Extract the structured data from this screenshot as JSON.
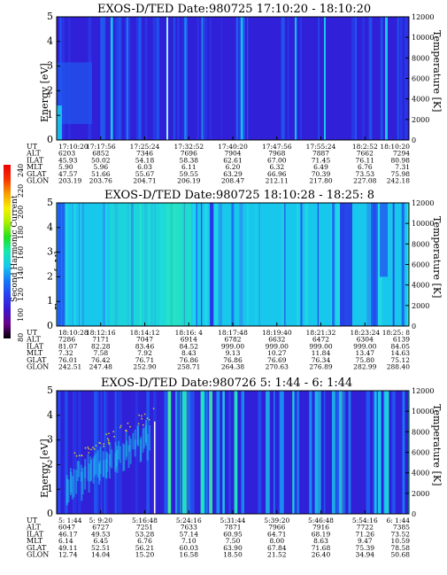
{
  "chart_data": [
    {
      "type": "heatmap",
      "title": "EXOS-D/TED   Date:980725  17:10:20 - 18:10:20",
      "ylabel": "Energy [eV]",
      "y2label": "Temperature [K]",
      "ylim": [
        0,
        5
      ],
      "y2lim": [
        0,
        12000
      ],
      "yticks": [
        "0",
        "1",
        "2",
        "3",
        "4",
        "5"
      ],
      "y2ticks": [
        "0",
        "2000",
        "4000",
        "6000",
        "8000",
        "10000",
        "12000"
      ],
      "background_color": "#3020d8",
      "row_labels": [
        "UT",
        "ALT",
        "ILAT",
        "MLT",
        "GLAT",
        "GLON"
      ],
      "columns": [
        [
          "17:10:20",
          "6203",
          "45.93",
          "5.90",
          "47.57",
          "203.19"
        ],
        [
          "17:17:56",
          "6852",
          "50.02",
          "5.96",
          "51.66",
          "203.76"
        ],
        [
          "17:25:24",
          "7346",
          "54.18",
          "6.03",
          "55.67",
          "204.71"
        ],
        [
          "17:32:52",
          "7696",
          "58.38",
          "6.11",
          "59.55",
          "206.19"
        ],
        [
          "17:40:20",
          "7904",
          "62.61",
          "6.20",
          "63.29",
          "208.47"
        ],
        [
          "17:47:56",
          "7968",
          "67.00",
          "6.32",
          "66.96",
          "212.11"
        ],
        [
          "17:55:24",
          "7887",
          "71.45",
          "6.49",
          "70.39",
          "217.80"
        ],
        [
          "18:2:52",
          "7662",
          "76.11",
          "6.76",
          "73.53",
          "227.08"
        ],
        [
          "18:10:20",
          "7294",
          "80.98",
          "7.31",
          "75.98",
          "242.18"
        ]
      ]
    },
    {
      "type": "heatmap",
      "title": "EXOS-D/TED   Date:980725  18:10:28 - 18:25: 8",
      "ylabel": "Energy [eV]",
      "y2label": "Temperature [K]",
      "ylim": [
        0,
        5
      ],
      "y2lim": [
        0,
        12000
      ],
      "yticks": [
        "0",
        "1",
        "2",
        "3",
        "4",
        "5"
      ],
      "y2ticks": [
        "0",
        "2000",
        "4000",
        "6000",
        "8000",
        "10000",
        "12000"
      ],
      "background_color": "#18c8ec",
      "row_labels": [
        "UT",
        "ALT",
        "ILAT",
        "MLT",
        "GLAT",
        "GLON"
      ],
      "columns": [
        [
          "18:10:28",
          "7286",
          "81.07",
          "7.32",
          "76.01",
          "242.51"
        ],
        [
          "18:12:16",
          "7171",
          "82.28",
          "7.58",
          "76.42",
          "247.48"
        ],
        [
          "18:14:12",
          "7047",
          "83.46",
          "7.92",
          "76.71",
          "252.90"
        ],
        [
          "18:16: 4",
          "6914",
          "84.52",
          "8.43",
          "76.86",
          "258.71"
        ],
        [
          "18:17:48",
          "6782",
          "999.00",
          "9.13",
          "76.86",
          "264.38"
        ],
        [
          "18:19:40",
          "6632",
          "999.00",
          "10.27",
          "76.69",
          "270.63"
        ],
        [
          "18:21:32",
          "6472",
          "999.00",
          "11.84",
          "76.34",
          "276.89"
        ],
        [
          "18:23:24",
          "6304",
          "999.00",
          "13.47",
          "75.80",
          "282.99"
        ],
        [
          "18:25: 8",
          "6139",
          "84.05",
          "14.63",
          "75.12",
          "288.40"
        ]
      ]
    },
    {
      "type": "heatmap",
      "title": "EXOS-D/TED   Date:980726  5: 1:44 - 6: 1:44",
      "ylabel": "Energy [eV]",
      "y2label": "Temperature [K]",
      "ylim": [
        0,
        5
      ],
      "y2lim": [
        0,
        12000
      ],
      "yticks": [
        "0",
        "1",
        "2",
        "3",
        "4",
        "5"
      ],
      "y2ticks": [
        "0",
        "2000",
        "4000",
        "6000",
        "8000",
        "10000",
        "12000"
      ],
      "background_color": "#3020d8",
      "row_labels": [
        "UT",
        "ALT",
        "ILAT",
        "MLT",
        "GLAT",
        "GLON"
      ],
      "columns": [
        [
          "5: 1:44",
          "6047",
          "46.17",
          "6.14",
          "49.11",
          "12.74"
        ],
        [
          "5: 9:20",
          "6727",
          "49.53",
          "6.45",
          "52.51",
          "14.04"
        ],
        [
          "5:16:48",
          "7251",
          "53.28",
          "6.76",
          "56.21",
          "15.20"
        ],
        [
          "5:24:16",
          "7633",
          "57.14",
          "7.10",
          "60.03",
          "16.58"
        ],
        [
          "5:31:44",
          "7871",
          "60.95",
          "7.50",
          "63.90",
          "18.50"
        ],
        [
          "5:39:20",
          "7966",
          "64.71",
          "8.00",
          "67.84",
          "21.52"
        ],
        [
          "5:46:48",
          "7916",
          "68.19",
          "8.63",
          "71.68",
          "26.40"
        ],
        [
          "5:54:16",
          "7722",
          "71.26",
          "9.47",
          "75.39",
          "34.94"
        ],
        [
          "6: 1:44",
          "7385",
          "73.52",
          "10.59",
          "78.58",
          "50.68"
        ]
      ]
    }
  ],
  "colorbar": {
    "label": "Second Harmonic Current",
    "ticks": [
      "80",
      "100",
      "120",
      "140",
      "160",
      "180",
      "200",
      "220",
      "240"
    ],
    "colors": [
      "#000000",
      "#6a0088",
      "#3a18d0",
      "#2840f0",
      "#1878f8",
      "#18c8ec",
      "#18e8b0",
      "#20e020",
      "#a8f000",
      "#f8f000",
      "#f8a000",
      "#f83000",
      "#f00000"
    ]
  }
}
